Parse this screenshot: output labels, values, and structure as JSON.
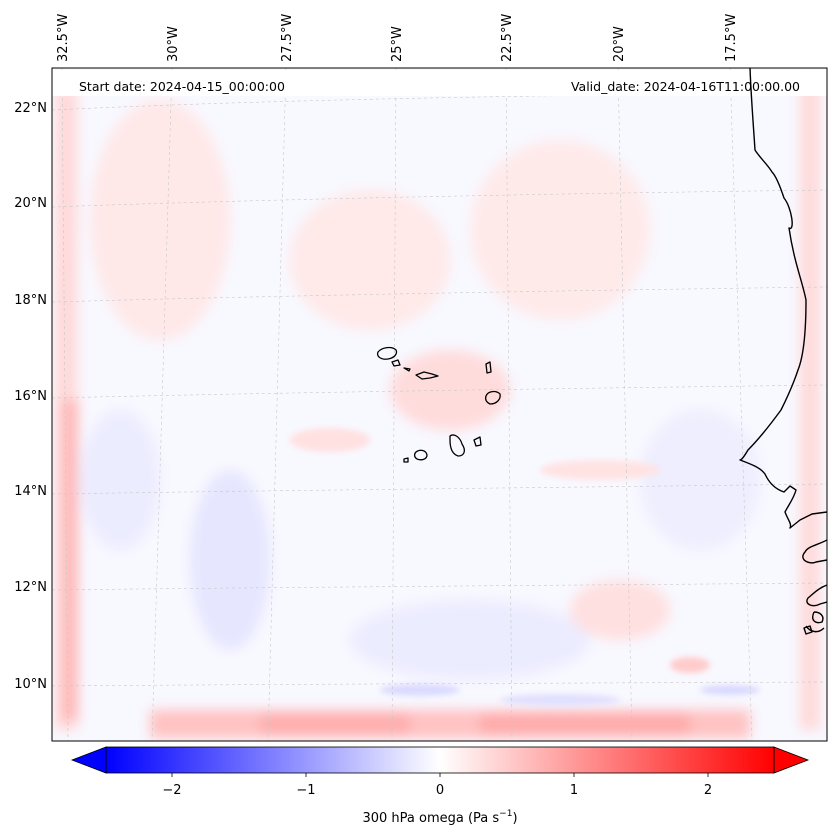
{
  "map": {
    "start_date": "Start date: 2024-04-15_00:00:00",
    "valid_date": "Valid_date: 2024-04-16T11:00:00.00",
    "longitude_labels": [
      "32.5°W",
      "30°W",
      "27.5°W",
      "25°W",
      "22.5°W",
      "20°W",
      "17.5°W"
    ],
    "latitude_labels": [
      "22°N",
      "20°N",
      "18°N",
      "16°N",
      "14°N",
      "12°N",
      "10°N"
    ],
    "field_variable": "300 hPa omega",
    "coastline_color": "#000000",
    "gridlines": true
  },
  "colorbar": {
    "tick_labels": [
      "−2",
      "−1",
      "0",
      "1",
      "2"
    ],
    "label_text": "300 hPa omega (Pa s",
    "label_exp": "−1",
    "label_close": ")",
    "range": [
      -2.6,
      2.6
    ],
    "colormap": "bwr",
    "color_low": "#0000ff",
    "color_mid": "#ffffff",
    "color_high": "#ff0000",
    "extend": "both"
  }
}
